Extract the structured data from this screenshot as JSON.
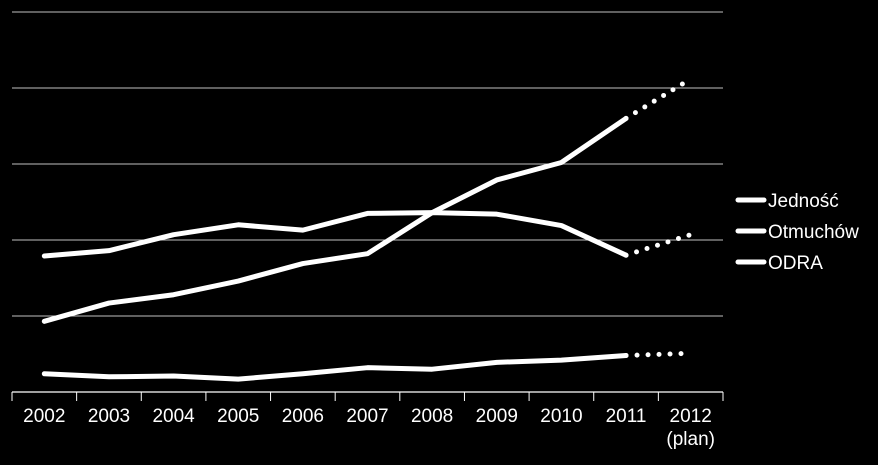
{
  "chart_data": {
    "type": "line",
    "title": "",
    "xlabel": "",
    "ylabel": "",
    "ylim": [
      0,
      5
    ],
    "grid": true,
    "legend_position": "right",
    "categories": [
      "2002",
      "2003",
      "2004",
      "2005",
      "2006",
      "2007",
      "2008",
      "2009",
      "2010",
      "2011",
      "2012"
    ],
    "category_sublabels": [
      "",
      "",
      "",
      "",
      "",
      "",
      "",
      "",
      "",
      "",
      "(plan)"
    ],
    "projection_from_index": 9,
    "series": [
      {
        "name": "Jedność",
        "values": [
          0.93,
          1.17,
          1.28,
          1.46,
          1.69,
          1.82,
          2.36,
          2.79,
          3.02,
          3.6,
          4.12
        ]
      },
      {
        "name": "Otmuchów",
        "values": [
          1.79,
          1.86,
          2.07,
          2.2,
          2.13,
          2.35,
          2.36,
          2.34,
          2.19,
          1.8,
          2.07
        ]
      },
      {
        "name": "ODRA",
        "values": [
          0.24,
          0.2,
          0.21,
          0.17,
          0.24,
          0.32,
          0.3,
          0.39,
          0.42,
          0.48,
          0.51
        ]
      }
    ],
    "colors": {
      "background": "#000000",
      "line": "#ffffff",
      "grid": "#ffffff",
      "text": "#ffffff"
    }
  }
}
